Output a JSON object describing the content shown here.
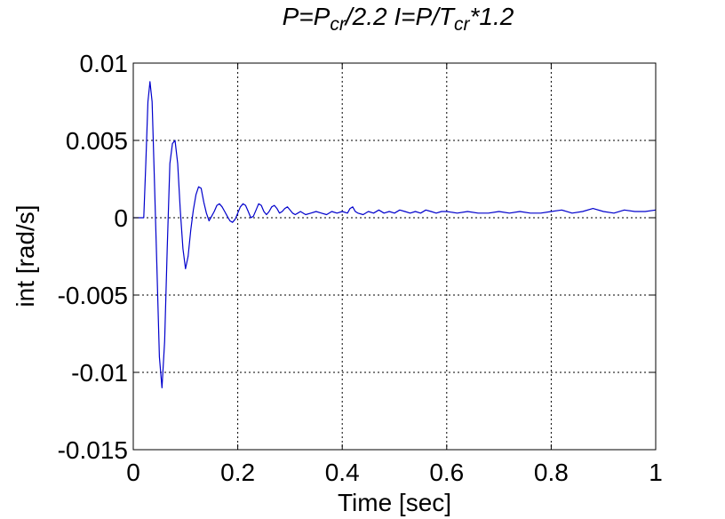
{
  "chart_data": {
    "type": "line",
    "title": {
      "segments": [
        {
          "text": "P=P",
          "sub": false
        },
        {
          "text": "cr",
          "sub": true
        },
        {
          "text": "/2.2  I=P/T",
          "sub": false
        },
        {
          "text": "cr",
          "sub": true
        },
        {
          "text": "*1.2",
          "sub": false
        }
      ]
    },
    "xlabel": "Time [sec]",
    "ylabel": "int [rad/s]",
    "xlim": [
      0,
      1
    ],
    "ylim": [
      -0.015,
      0.01
    ],
    "xticks": [
      0,
      0.2,
      0.4,
      0.6,
      0.8,
      1
    ],
    "xtick_labels": [
      "0",
      "0.2",
      "0.4",
      "0.6",
      "0.8",
      "1"
    ],
    "yticks": [
      0.01,
      0.005,
      0,
      -0.005,
      -0.01,
      -0.015
    ],
    "ytick_labels": [
      "0.01",
      "0.005",
      "0",
      "-0.005",
      "-0.01",
      "-0.015"
    ],
    "grid": true,
    "grid_style": "dotted",
    "series": [
      {
        "color": "#0000cc",
        "x": [
          0,
          0.02,
          0.024,
          0.028,
          0.032,
          0.036,
          0.04,
          0.045,
          0.05,
          0.055,
          0.06,
          0.065,
          0.07,
          0.075,
          0.08,
          0.085,
          0.09,
          0.095,
          0.1,
          0.105,
          0.11,
          0.115,
          0.12,
          0.125,
          0.13,
          0.135,
          0.14,
          0.145,
          0.15,
          0.155,
          0.16,
          0.165,
          0.17,
          0.175,
          0.18,
          0.185,
          0.19,
          0.195,
          0.2,
          0.205,
          0.21,
          0.215,
          0.22,
          0.225,
          0.23,
          0.235,
          0.24,
          0.245,
          0.25,
          0.255,
          0.26,
          0.265,
          0.27,
          0.275,
          0.28,
          0.285,
          0.29,
          0.295,
          0.3,
          0.305,
          0.31,
          0.315,
          0.32,
          0.33,
          0.34,
          0.35,
          0.36,
          0.37,
          0.38,
          0.39,
          0.4,
          0.41,
          0.415,
          0.42,
          0.425,
          0.43,
          0.44,
          0.45,
          0.46,
          0.47,
          0.48,
          0.49,
          0.5,
          0.51,
          0.52,
          0.53,
          0.54,
          0.55,
          0.56,
          0.57,
          0.58,
          0.59,
          0.6,
          0.62,
          0.64,
          0.66,
          0.68,
          0.7,
          0.72,
          0.74,
          0.76,
          0.78,
          0.8,
          0.82,
          0.84,
          0.86,
          0.88,
          0.9,
          0.92,
          0.94,
          0.96,
          0.98,
          1.0
        ],
        "y": [
          0,
          0,
          0.0035,
          0.0075,
          0.0088,
          0.0075,
          0.003,
          -0.003,
          -0.009,
          -0.011,
          -0.008,
          -0.002,
          0.0035,
          0.0048,
          0.005,
          0.0035,
          0.0005,
          -0.002,
          -0.0033,
          -0.0025,
          -0.0008,
          0.0005,
          0.0015,
          0.002,
          0.0019,
          0.001,
          0.0003,
          -0.0002,
          0.0001,
          0.0004,
          0.0008,
          0.0009,
          0.0007,
          0.0004,
          0.0001,
          -0.0002,
          -0.0003,
          -0.0001,
          0.0003,
          0.0007,
          0.0009,
          0.0008,
          0.0004,
          0,
          0.0001,
          0.0005,
          0.0009,
          0.0008,
          0.0004,
          0.0002,
          0.0004,
          0.0007,
          0.0008,
          0.0006,
          0.0003,
          0.0004,
          0.0006,
          0.0007,
          0.0005,
          0.0003,
          0.0002,
          0.0003,
          0.0004,
          0.0002,
          0.0003,
          0.0004,
          0.0003,
          0.0002,
          0.0004,
          0.0003,
          0.0004,
          0.0003,
          0.0006,
          0.0007,
          0.0004,
          0.0003,
          0.0002,
          0.0004,
          0.0003,
          0.0005,
          0.0003,
          0.0004,
          0.0003,
          0.0005,
          0.0004,
          0.0003,
          0.0004,
          0.0003,
          0.0005,
          0.0004,
          0.0003,
          0.0004,
          0.0004,
          0.0003,
          0.0004,
          0.0003,
          0.0003,
          0.0004,
          0.0003,
          0.0004,
          0.0003,
          0.0003,
          0.0004,
          0.0005,
          0.0003,
          0.0004,
          0.0006,
          0.0004,
          0.0003,
          0.0005,
          0.0004,
          0.0004,
          0.0005
        ]
      }
    ]
  }
}
